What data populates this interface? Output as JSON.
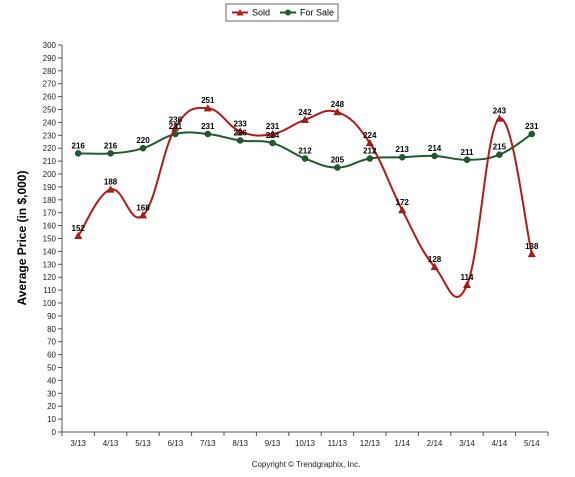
{
  "chart_data": {
    "type": "line",
    "ylabel": "Average Price (in $,000)",
    "xlabel": "",
    "ylim": [
      0,
      300
    ],
    "ytick_step": 10,
    "categories": [
      "3/13",
      "4/13",
      "5/13",
      "6/13",
      "7/13",
      "8/13",
      "9/13",
      "10/13",
      "11/13",
      "12/13",
      "1/14",
      "2/14",
      "3/14",
      "4/14",
      "5/14"
    ],
    "series": [
      {
        "name": "Sold",
        "color": "#b11b1b",
        "marker": "triangle",
        "values": [
          152,
          188,
          168,
          236,
          251,
          233,
          231,
          242,
          248,
          224,
          172,
          128,
          114,
          243,
          138
        ]
      },
      {
        "name": "For Sale",
        "color": "#1e5b2e",
        "marker": "circle",
        "values": [
          216,
          216,
          220,
          231,
          231,
          226,
          224,
          212,
          205,
          212,
          213,
          214,
          211,
          215,
          231
        ]
      }
    ],
    "legend_position": "top-center",
    "grid": false,
    "copyright": "Copyright © Trendgraphix, Inc."
  }
}
